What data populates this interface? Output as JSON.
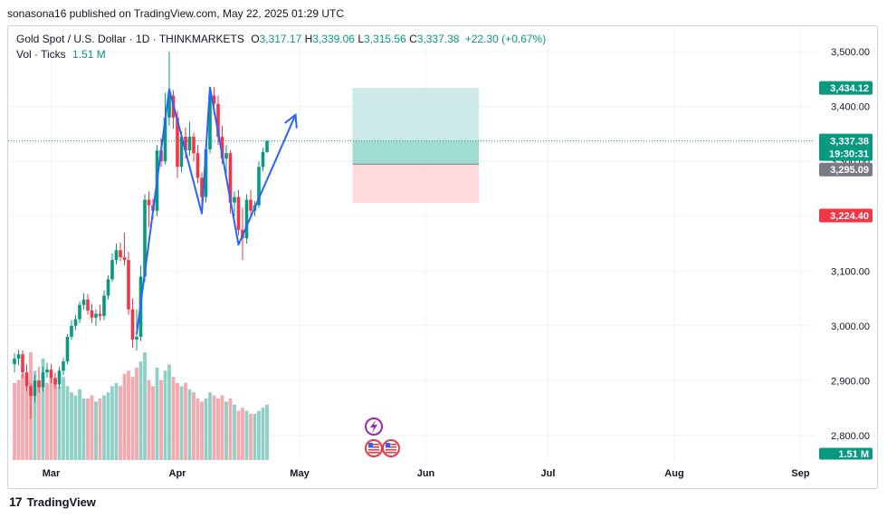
{
  "header": {
    "published": "sonasona16 published on TradingView.com, May 22, 2025 01:29 UTC"
  },
  "legend": {
    "symbol": "Gold Spot / U.S. Dollar · 1D · THINKMARKETS",
    "o_label": "O",
    "o_value": "3,317.17",
    "h_label": "H",
    "h_value": "3,339.06",
    "l_label": "L",
    "l_value": "3,315.56",
    "c_label": "C",
    "c_value": "3,337.38",
    "change": "+22.30 (+0.67%)",
    "vol_label": "Vol · Ticks",
    "vol_value": "1.51 M"
  },
  "footer": {
    "brand": "TradingView"
  },
  "colors": {
    "up": "#089981",
    "down": "#f23645",
    "pattern": "#2962ff",
    "tp": "#b2dfdb",
    "sl": "#ffcdd2"
  },
  "chart_data": {
    "type": "candlestick",
    "y_ticks": [
      "3,500.00",
      "3,400.00",
      "3,300.00",
      "3,200.00",
      "3,100.00",
      "3,000.00",
      "2,900.00",
      "2,800.00"
    ],
    "y_tick_values": [
      3500,
      3400,
      3300,
      3200,
      3100,
      3000,
      2900,
      2800
    ],
    "ylim": [
      2760,
      3545
    ],
    "x_ticks": [
      "Mar",
      "Apr",
      "May",
      "Jun",
      "Jul",
      "Aug",
      "Sep"
    ],
    "x_tick_days": [
      9,
      40,
      70,
      101,
      131,
      162,
      193
    ],
    "price_labels": {
      "target": "3,434.12",
      "last": "3,337.38",
      "countdown": "19:30:31",
      "entry": "3,295.09",
      "stop": "3,224.40",
      "volume": "1.51 M"
    },
    "levels": {
      "target": 3434.12,
      "last": 3337.38,
      "entry": 3295.09,
      "stop": 3224.4
    },
    "position_tool": {
      "start_day": 83,
      "end_day": 114
    },
    "candles": [
      {
        "d": 0,
        "o": 2930,
        "h": 2950,
        "l": 2915,
        "c": 2940
      },
      {
        "d": 1,
        "o": 2940,
        "h": 2956,
        "l": 2928,
        "c": 2948
      },
      {
        "d": 2,
        "o": 2948,
        "h": 2955,
        "l": 2905,
        "c": 2915
      },
      {
        "d": 3,
        "o": 2915,
        "h": 2930,
        "l": 2880,
        "c": 2890
      },
      {
        "d": 4,
        "o": 2890,
        "h": 2895,
        "l": 2830,
        "c": 2872
      },
      {
        "d": 5,
        "o": 2872,
        "h": 2910,
        "l": 2860,
        "c": 2900
      },
      {
        "d": 6,
        "o": 2900,
        "h": 2925,
        "l": 2878,
        "c": 2888
      },
      {
        "d": 7,
        "o": 2888,
        "h": 2925,
        "l": 2880,
        "c": 2915
      },
      {
        "d": 8,
        "o": 2915,
        "h": 2932,
        "l": 2905,
        "c": 2920
      },
      {
        "d": 9,
        "o": 2920,
        "h": 2930,
        "l": 2895,
        "c": 2905
      },
      {
        "d": 10,
        "o": 2905,
        "h": 2915,
        "l": 2885,
        "c": 2893
      },
      {
        "d": 11,
        "o": 2893,
        "h": 2925,
        "l": 2885,
        "c": 2918
      },
      {
        "d": 12,
        "o": 2918,
        "h": 2942,
        "l": 2910,
        "c": 2935
      },
      {
        "d": 13,
        "o": 2935,
        "h": 2985,
        "l": 2930,
        "c": 2980
      },
      {
        "d": 14,
        "o": 2980,
        "h": 3010,
        "l": 2975,
        "c": 3000
      },
      {
        "d": 15,
        "o": 3000,
        "h": 3020,
        "l": 2992,
        "c": 3012
      },
      {
        "d": 16,
        "o": 3012,
        "h": 3045,
        "l": 3005,
        "c": 3038
      },
      {
        "d": 17,
        "o": 3038,
        "h": 3060,
        "l": 3030,
        "c": 3048
      },
      {
        "d": 18,
        "o": 3048,
        "h": 3058,
        "l": 3020,
        "c": 3028
      },
      {
        "d": 19,
        "o": 3028,
        "h": 3040,
        "l": 3005,
        "c": 3015
      },
      {
        "d": 20,
        "o": 3015,
        "h": 3030,
        "l": 3000,
        "c": 3022
      },
      {
        "d": 21,
        "o": 3022,
        "h": 3038,
        "l": 3010,
        "c": 3018
      },
      {
        "d": 22,
        "o": 3018,
        "h": 3065,
        "l": 3010,
        "c": 3055
      },
      {
        "d": 23,
        "o": 3055,
        "h": 3092,
        "l": 3048,
        "c": 3085
      },
      {
        "d": 24,
        "o": 3085,
        "h": 3132,
        "l": 3080,
        "c": 3120
      },
      {
        "d": 25,
        "o": 3120,
        "h": 3150,
        "l": 3112,
        "c": 3138
      },
      {
        "d": 26,
        "o": 3138,
        "h": 3152,
        "l": 3118,
        "c": 3125
      },
      {
        "d": 27,
        "o": 3125,
        "h": 3170,
        "l": 3110,
        "c": 3120
      },
      {
        "d": 28,
        "o": 3120,
        "h": 3135,
        "l": 3020,
        "c": 3030
      },
      {
        "d": 29,
        "o": 3030,
        "h": 3050,
        "l": 2960,
        "c": 2975
      },
      {
        "d": 30,
        "o": 2975,
        "h": 3030,
        "l": 2955,
        "c": 2980
      },
      {
        "d": 31,
        "o": 2980,
        "h": 3110,
        "l": 2972,
        "c": 3090
      },
      {
        "d": 32,
        "o": 3090,
        "h": 3240,
        "l": 3080,
        "c": 3230
      },
      {
        "d": 33,
        "o": 3230,
        "h": 3245,
        "l": 3180,
        "c": 3220
      },
      {
        "d": 34,
        "o": 3220,
        "h": 3232,
        "l": 3195,
        "c": 3210
      },
      {
        "d": 35,
        "o": 3210,
        "h": 3330,
        "l": 3200,
        "c": 3320
      },
      {
        "d": 36,
        "o": 3320,
        "h": 3342,
        "l": 3290,
        "c": 3300
      },
      {
        "d": 37,
        "o": 3300,
        "h": 3425,
        "l": 3295,
        "c": 3380
      },
      {
        "d": 38,
        "o": 3380,
        "h": 3500,
        "l": 3365,
        "c": 3420
      },
      {
        "d": 39,
        "o": 3420,
        "h": 3430,
        "l": 3360,
        "c": 3380
      },
      {
        "d": 40,
        "o": 3380,
        "h": 3392,
        "l": 3270,
        "c": 3290
      },
      {
        "d": 41,
        "o": 3290,
        "h": 3355,
        "l": 3280,
        "c": 3345
      },
      {
        "d": 42,
        "o": 3345,
        "h": 3362,
        "l": 3305,
        "c": 3320
      },
      {
        "d": 43,
        "o": 3320,
        "h": 3372,
        "l": 3310,
        "c": 3345
      },
      {
        "d": 44,
        "o": 3345,
        "h": 3352,
        "l": 3300,
        "c": 3315
      },
      {
        "d": 45,
        "o": 3315,
        "h": 3330,
        "l": 3260,
        "c": 3270
      },
      {
        "d": 46,
        "o": 3270,
        "h": 3280,
        "l": 3205,
        "c": 3235
      },
      {
        "d": 47,
        "o": 3235,
        "h": 3330,
        "l": 3225,
        "c": 3322
      },
      {
        "d": 48,
        "o": 3322,
        "h": 3432,
        "l": 3315,
        "c": 3420
      },
      {
        "d": 49,
        "o": 3420,
        "h": 3435,
        "l": 3385,
        "c": 3405
      },
      {
        "d": 50,
        "o": 3405,
        "h": 3420,
        "l": 3330,
        "c": 3345
      },
      {
        "d": 51,
        "o": 3345,
        "h": 3365,
        "l": 3295,
        "c": 3305
      },
      {
        "d": 52,
        "o": 3305,
        "h": 3330,
        "l": 3270,
        "c": 3315
      },
      {
        "d": 53,
        "o": 3315,
        "h": 3320,
        "l": 3205,
        "c": 3225
      },
      {
        "d": 54,
        "o": 3225,
        "h": 3245,
        "l": 3200,
        "c": 3235
      },
      {
        "d": 55,
        "o": 3235,
        "h": 3248,
        "l": 3165,
        "c": 3175
      },
      {
        "d": 56,
        "o": 3175,
        "h": 3215,
        "l": 3120,
        "c": 3160
      },
      {
        "d": 57,
        "o": 3160,
        "h": 3240,
        "l": 3150,
        "c": 3230
      },
      {
        "d": 58,
        "o": 3230,
        "h": 3248,
        "l": 3195,
        "c": 3210
      },
      {
        "d": 59,
        "o": 3210,
        "h": 3228,
        "l": 3200,
        "c": 3220
      },
      {
        "d": 60,
        "o": 3220,
        "h": 3300,
        "l": 3215,
        "c": 3290
      },
      {
        "d": 61,
        "o": 3290,
        "h": 3325,
        "l": 3282,
        "c": 3317
      },
      {
        "d": 62,
        "o": 3317.17,
        "h": 3339.06,
        "l": 3315.56,
        "c": 3337.38
      }
    ],
    "volume": [
      {
        "d": 0,
        "v": 0.5,
        "up": false
      },
      {
        "d": 1,
        "v": 0.52,
        "up": false
      },
      {
        "d": 2,
        "v": 0.56,
        "up": false
      },
      {
        "d": 3,
        "v": 0.52,
        "up": false
      },
      {
        "d": 4,
        "v": 0.7,
        "up": false
      },
      {
        "d": 5,
        "v": 0.58,
        "up": true
      },
      {
        "d": 6,
        "v": 0.52,
        "up": false
      },
      {
        "d": 7,
        "v": 0.66,
        "up": true
      },
      {
        "d": 8,
        "v": 0.5,
        "up": false
      },
      {
        "d": 9,
        "v": 0.55,
        "up": false
      },
      {
        "d": 10,
        "v": 0.52,
        "up": false
      },
      {
        "d": 11,
        "v": 0.48,
        "up": true
      },
      {
        "d": 12,
        "v": 0.54,
        "up": true
      },
      {
        "d": 13,
        "v": 0.48,
        "up": true
      },
      {
        "d": 14,
        "v": 0.44,
        "up": true
      },
      {
        "d": 15,
        "v": 0.42,
        "up": true
      },
      {
        "d": 16,
        "v": 0.46,
        "up": true
      },
      {
        "d": 17,
        "v": 0.4,
        "up": true
      },
      {
        "d": 18,
        "v": 0.4,
        "up": false
      },
      {
        "d": 19,
        "v": 0.42,
        "up": false
      },
      {
        "d": 20,
        "v": 0.38,
        "up": true
      },
      {
        "d": 21,
        "v": 0.4,
        "up": false
      },
      {
        "d": 22,
        "v": 0.42,
        "up": true
      },
      {
        "d": 23,
        "v": 0.44,
        "up": true
      },
      {
        "d": 24,
        "v": 0.48,
        "up": true
      },
      {
        "d": 25,
        "v": 0.5,
        "up": true
      },
      {
        "d": 26,
        "v": 0.48,
        "up": false
      },
      {
        "d": 27,
        "v": 0.56,
        "up": false
      },
      {
        "d": 28,
        "v": 0.58,
        "up": false
      },
      {
        "d": 29,
        "v": 0.54,
        "up": false
      },
      {
        "d": 30,
        "v": 0.6,
        "up": false
      },
      {
        "d": 31,
        "v": 0.64,
        "up": true
      },
      {
        "d": 32,
        "v": 0.7,
        "up": true
      },
      {
        "d": 33,
        "v": 0.52,
        "up": false
      },
      {
        "d": 34,
        "v": 0.48,
        "up": false
      },
      {
        "d": 35,
        "v": 0.6,
        "up": true
      },
      {
        "d": 36,
        "v": 0.52,
        "up": false
      },
      {
        "d": 37,
        "v": 0.58,
        "up": true
      },
      {
        "d": 38,
        "v": 0.62,
        "up": true
      },
      {
        "d": 39,
        "v": 0.54,
        "up": false
      },
      {
        "d": 40,
        "v": 0.5,
        "up": false
      },
      {
        "d": 41,
        "v": 0.48,
        "up": true
      },
      {
        "d": 42,
        "v": 0.5,
        "up": false
      },
      {
        "d": 43,
        "v": 0.46,
        "up": true
      },
      {
        "d": 44,
        "v": 0.44,
        "up": false
      },
      {
        "d": 45,
        "v": 0.4,
        "up": false
      },
      {
        "d": 46,
        "v": 0.38,
        "up": false
      },
      {
        "d": 47,
        "v": 0.4,
        "up": true
      },
      {
        "d": 48,
        "v": 0.44,
        "up": true
      },
      {
        "d": 49,
        "v": 0.42,
        "up": false
      },
      {
        "d": 50,
        "v": 0.4,
        "up": false
      },
      {
        "d": 51,
        "v": 0.42,
        "up": false
      },
      {
        "d": 52,
        "v": 0.38,
        "up": true
      },
      {
        "d": 53,
        "v": 0.4,
        "up": false
      },
      {
        "d": 54,
        "v": 0.36,
        "up": true
      },
      {
        "d": 55,
        "v": 0.32,
        "up": false
      },
      {
        "d": 56,
        "v": 0.34,
        "up": false
      },
      {
        "d": 57,
        "v": 0.32,
        "up": true
      },
      {
        "d": 58,
        "v": 0.3,
        "up": false
      },
      {
        "d": 59,
        "v": 0.3,
        "up": true
      },
      {
        "d": 60,
        "v": 0.32,
        "up": true
      },
      {
        "d": 61,
        "v": 0.34,
        "up": true
      },
      {
        "d": 62,
        "v": 0.36,
        "up": true
      }
    ],
    "pattern_points": [
      {
        "d": 30,
        "p": 2985
      },
      {
        "d": 38,
        "p": 3432
      },
      {
        "d": 46,
        "p": 3205
      },
      {
        "d": 48,
        "p": 3435
      },
      {
        "d": 55,
        "p": 3148
      },
      {
        "d": 69,
        "p": 3385
      }
    ]
  }
}
